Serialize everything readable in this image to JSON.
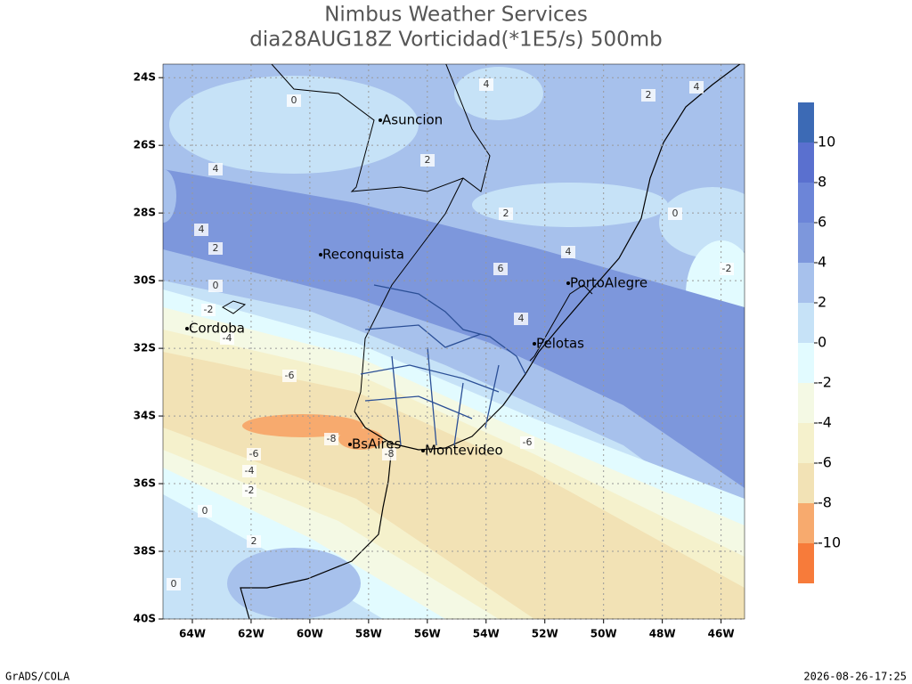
{
  "title": "Nimbus Weather Services",
  "subtitle": "dia28AUG18Z Vorticidad(*1E5/s) 500mb",
  "map": {
    "xlim": [
      -65,
      -45.2
    ],
    "ylim": [
      -40,
      -23.6
    ],
    "grid": true,
    "xticks": [
      {
        "value": -64,
        "label": "64W"
      },
      {
        "value": -62,
        "label": "62W"
      },
      {
        "value": -60,
        "label": "60W"
      },
      {
        "value": -58,
        "label": "58W"
      },
      {
        "value": -56,
        "label": "56W"
      },
      {
        "value": -54,
        "label": "54W"
      },
      {
        "value": -52,
        "label": "52W"
      },
      {
        "value": -50,
        "label": "50W"
      },
      {
        "value": -48,
        "label": "48W"
      },
      {
        "value": -46,
        "label": "46W"
      }
    ],
    "yticks": [
      {
        "value": -24,
        "label": "24S"
      },
      {
        "value": -26,
        "label": "26S"
      },
      {
        "value": -28,
        "label": "28S"
      },
      {
        "value": -30,
        "label": "30S"
      },
      {
        "value": -32,
        "label": "32S"
      },
      {
        "value": -34,
        "label": "34S"
      },
      {
        "value": -36,
        "label": "36S"
      },
      {
        "value": -38,
        "label": "38S"
      },
      {
        "value": -40,
        "label": "40S"
      }
    ],
    "cities": [
      "Asuncion",
      "Reconquista",
      "PortoAlegre",
      "Cordoba",
      "Pelotas",
      "BsAires",
      "Montevideo"
    ],
    "contour_labels": [
      0,
      2,
      4,
      4,
      2,
      6,
      4,
      4,
      2,
      0,
      -2,
      0,
      -2,
      -4,
      -6,
      -8,
      -8,
      -6,
      -6,
      -4,
      -2,
      0,
      2,
      0,
      4,
      2,
      4
    ]
  },
  "colorbar": {
    "levels": [
      -10,
      -8,
      -6,
      -4,
      -2,
      0,
      2,
      4,
      6,
      8,
      10
    ],
    "colors": [
      "#f77b3a",
      "#f7aa6e",
      "#f2e2b5",
      "#f5f1cc",
      "#f4f9e4",
      "#e2fbff",
      "#c6e2f7",
      "#a7c1ec",
      "#7d97dc",
      "#6c85d8",
      "#5a70cf",
      "#3c6ab5"
    ]
  },
  "footer": {
    "left": "GrADS/COLA",
    "right": "2026-08-26-17:25"
  }
}
